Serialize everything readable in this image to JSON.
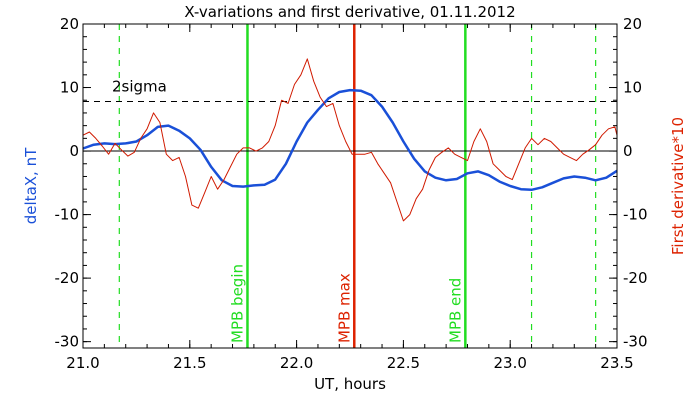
{
  "chart_data": {
    "type": "line",
    "title": "X-variations and first derivative, 01.11.2012",
    "xlabel": "UT, hours",
    "ylabel_left": "deltaX, nT",
    "ylabel_right": "First derivative*10",
    "xlim": [
      21.0,
      23.5
    ],
    "ylim": [
      -31,
      20
    ],
    "x_ticks": [
      21.0,
      21.5,
      22.0,
      22.5,
      23.0,
      23.5
    ],
    "x_tick_labels": [
      "21.0",
      "21.5",
      "22.0",
      "22.5",
      "23.0",
      "23.5"
    ],
    "y_ticks": [
      -30,
      -20,
      -10,
      0,
      10,
      20
    ],
    "y_tick_labels": [
      "-30",
      "-20",
      "-10",
      "0",
      "10",
      "20"
    ],
    "colors": {
      "deltaX": "#1a50d8",
      "derivative": "#d01a00",
      "green_marker": "#22dd22",
      "red_marker": "#dd2200",
      "right_axis_label": "#dd2200",
      "left_axis_label": "#1a50d8"
    },
    "series": [
      {
        "key": "deltaX",
        "color": "#1a50d8",
        "x": [
          21.0,
          21.05,
          21.1,
          21.15,
          21.2,
          21.25,
          21.3,
          21.35,
          21.4,
          21.45,
          21.5,
          21.55,
          21.6,
          21.65,
          21.7,
          21.75,
          21.8,
          21.85,
          21.9,
          21.95,
          22.0,
          22.05,
          22.1,
          22.15,
          22.2,
          22.25,
          22.3,
          22.35,
          22.4,
          22.45,
          22.5,
          22.55,
          22.6,
          22.65,
          22.7,
          22.75,
          22.8,
          22.85,
          22.9,
          22.95,
          23.0,
          23.05,
          23.1,
          23.15,
          23.2,
          23.25,
          23.3,
          23.35,
          23.4,
          23.45,
          23.5
        ],
        "y": [
          0.4,
          1.0,
          1.2,
          1.1,
          1.2,
          1.5,
          2.5,
          3.8,
          4.0,
          3.2,
          2.0,
          0.2,
          -2.5,
          -4.6,
          -5.5,
          -5.6,
          -5.4,
          -5.3,
          -4.5,
          -2.0,
          1.5,
          4.5,
          6.5,
          8.3,
          9.3,
          9.6,
          9.5,
          8.8,
          7.0,
          4.5,
          1.5,
          -1.2,
          -3.2,
          -4.2,
          -4.6,
          -4.4,
          -3.5,
          -3.2,
          -3.8,
          -4.8,
          -5.5,
          -6.0,
          -6.1,
          -5.7,
          -5.0,
          -4.3,
          -4.0,
          -4.2,
          -4.6,
          -4.2,
          -3.1
        ]
      },
      {
        "key": "derivative",
        "color": "#d01a00",
        "x": [
          21.0,
          21.03,
          21.06,
          21.09,
          21.12,
          21.15,
          21.18,
          21.21,
          21.24,
          21.27,
          21.3,
          21.33,
          21.36,
          21.39,
          21.42,
          21.45,
          21.48,
          21.51,
          21.54,
          21.57,
          21.6,
          21.63,
          21.66,
          21.69,
          21.72,
          21.75,
          21.78,
          21.81,
          21.84,
          21.87,
          21.9,
          21.93,
          21.96,
          21.99,
          22.02,
          22.05,
          22.08,
          22.11,
          22.14,
          22.17,
          22.2,
          22.23,
          22.26,
          22.29,
          22.32,
          22.35,
          22.38,
          22.41,
          22.44,
          22.47,
          22.5,
          22.53,
          22.56,
          22.59,
          22.62,
          22.65,
          22.68,
          22.71,
          22.74,
          22.77,
          22.8,
          22.83,
          22.86,
          22.89,
          22.92,
          22.95,
          22.98,
          23.01,
          23.04,
          23.07,
          23.1,
          23.13,
          23.16,
          23.19,
          23.22,
          23.25,
          23.28,
          23.31,
          23.34,
          23.37,
          23.4,
          23.43,
          23.46,
          23.49,
          23.5
        ],
        "y": [
          2.5,
          3.0,
          2.0,
          0.8,
          -0.5,
          1.2,
          0.2,
          -0.8,
          -0.2,
          2.0,
          3.5,
          6.0,
          4.5,
          -0.5,
          -1.5,
          -1.0,
          -4.0,
          -8.5,
          -9.0,
          -6.5,
          -4.0,
          -6.0,
          -4.5,
          -2.5,
          -0.5,
          0.5,
          0.5,
          0.0,
          0.5,
          1.5,
          4.0,
          8.0,
          7.5,
          10.5,
          12.0,
          14.5,
          11.0,
          8.5,
          7.0,
          7.5,
          4.0,
          1.5,
          -0.5,
          -0.5,
          -0.5,
          -0.2,
          -2.0,
          -3.5,
          -5.0,
          -8.0,
          -11.0,
          -10.0,
          -7.5,
          -6.0,
          -3.0,
          -1.0,
          -0.2,
          0.5,
          -0.5,
          -1.0,
          -1.5,
          1.5,
          3.5,
          1.5,
          -2.0,
          -3.0,
          -4.0,
          -4.5,
          -2.0,
          0.5,
          2.0,
          1.0,
          2.0,
          1.5,
          0.5,
          -0.5,
          -1.0,
          -1.5,
          -0.5,
          0.2,
          1.0,
          2.5,
          3.5,
          3.8,
          2.5
        ]
      }
    ],
    "horizontal_lines": [
      {
        "y": 0,
        "style": "solid",
        "color": "#000000"
      },
      {
        "y": 7.8,
        "style": "dashed",
        "color": "#000000",
        "label": "2sigma"
      }
    ],
    "vertical_markers": [
      {
        "x": 21.17,
        "style": "dashed",
        "color": "#22dd22",
        "label": ""
      },
      {
        "x": 21.77,
        "style": "solid",
        "color": "#22dd22",
        "label": "MPB begin"
      },
      {
        "x": 22.27,
        "style": "solid",
        "color": "#dd2200",
        "label": "MPB max"
      },
      {
        "x": 22.79,
        "style": "solid",
        "color": "#22dd22",
        "label": "MPB end"
      },
      {
        "x": 23.1,
        "style": "dashed",
        "color": "#22dd22",
        "label": ""
      },
      {
        "x": 23.4,
        "style": "dashed",
        "color": "#22dd22",
        "label": ""
      }
    ],
    "grid": false,
    "legend": "none"
  }
}
